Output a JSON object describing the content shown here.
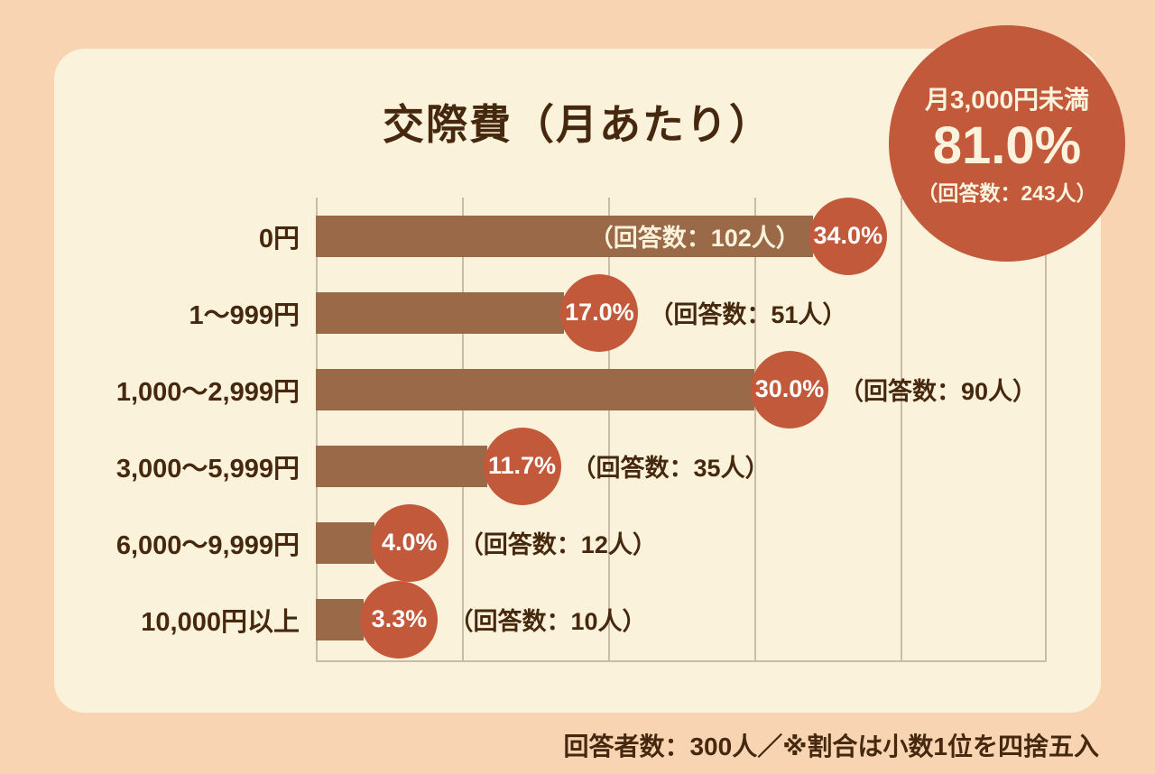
{
  "chart_data": {
    "type": "bar",
    "orientation": "horizontal",
    "title": "交際費（月あたり）",
    "xlim": [
      0,
      50
    ],
    "max": 50,
    "gridlines_every": 10,
    "grid": true,
    "legend": "none",
    "bar_color": "#9A6A48",
    "percent_badge_color": "#C2593A",
    "categories": [
      "0円",
      "1〜999円",
      "1,000〜2,999円",
      "3,000〜5,999円",
      "6,000〜9,999円",
      "10,000円以上"
    ],
    "values": [
      34.0,
      17.0,
      30.0,
      11.7,
      4.0,
      3.3
    ],
    "rows": [
      {
        "label": "0円",
        "value": 34.0,
        "pct": "34.0%",
        "count": "（回答数：102人）",
        "count_position": "inside"
      },
      {
        "label": "1〜999円",
        "value": 17.0,
        "pct": "17.0%",
        "count": "（回答数：51人）",
        "count_position": "outside"
      },
      {
        "label": "1,000〜2,999円",
        "value": 30.0,
        "pct": "30.0%",
        "count": "（回答数：90人）",
        "count_position": "outside"
      },
      {
        "label": "3,000〜5,999円",
        "value": 11.7,
        "pct": "11.7%",
        "count": "（回答数：35人）",
        "count_position": "outside"
      },
      {
        "label": "6,000〜9,999円",
        "value": 4.0,
        "pct": "4.0%",
        "count": "（回答数：12人）",
        "count_position": "outside"
      },
      {
        "label": "10,000円以上",
        "value": 3.3,
        "pct": "3.3%",
        "count": "（回答数：10人）",
        "count_position": "outside"
      }
    ]
  },
  "badge": {
    "label": "月3,000円未満",
    "percent": "81.0%",
    "count": "（回答数：243人）"
  },
  "footnote": "回答者数：300人／※割合は小数1位を四捨五入",
  "colors": {
    "page_bg": "#F8D4B2",
    "card_bg": "#FBF2DC",
    "bar": "#9A6A48",
    "accent": "#C2593A",
    "text": "#45280E",
    "gridline": "#C9BDA8"
  }
}
